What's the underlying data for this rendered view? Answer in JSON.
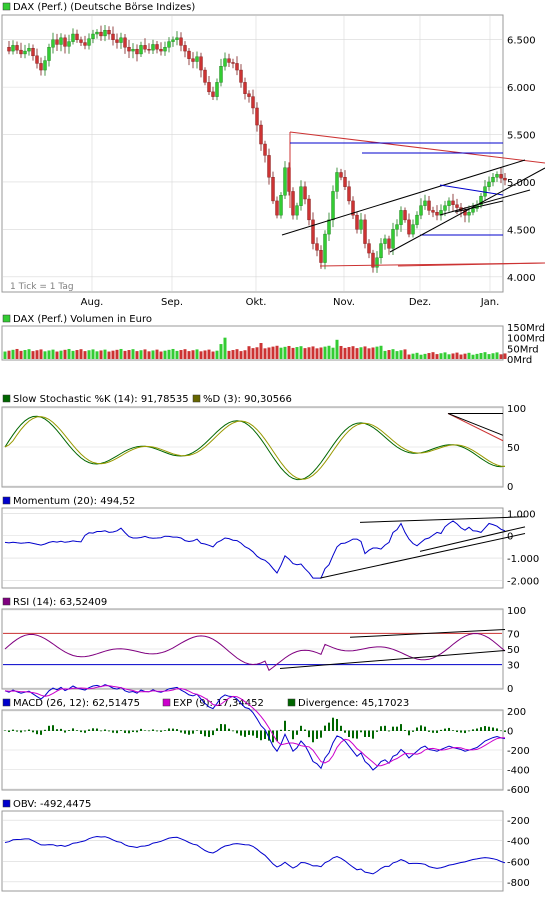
{
  "chart_data": [
    {
      "type": "line",
      "style": "candlestick",
      "legend": [
        {
          "label": "DAX (Perf.) (Deutsche Börse Indizes)",
          "color": "#33cc33"
        }
      ],
      "xticks": [
        "Aug.",
        "Sep.",
        "Okt.",
        "Nov.",
        "Dez.",
        "Jan."
      ],
      "yticks": [
        "4.000",
        "4.500",
        "5.000",
        "5.500",
        "6.000",
        "6.500"
      ],
      "ylim": [
        3850,
        6750
      ],
      "note": "1 Tick = 1 Tag",
      "x": [
        0,
        4,
        8,
        12,
        16,
        20,
        24,
        28,
        32,
        36,
        40,
        44,
        48,
        52,
        56,
        60,
        64,
        68,
        72,
        76,
        80,
        84,
        88,
        92,
        96,
        100,
        104,
        108,
        112,
        116,
        120,
        124,
        128,
        132,
        136,
        140,
        144,
        148,
        152,
        156,
        160,
        164,
        168,
        172,
        176,
        180,
        184,
        188,
        192,
        196,
        200,
        204,
        208,
        212,
        216,
        220,
        224,
        228,
        232,
        236,
        240,
        244,
        248,
        252,
        256,
        260,
        264,
        268,
        272,
        276,
        280,
        284,
        288,
        292,
        296,
        300,
        304,
        308,
        312,
        316,
        320,
        324,
        328,
        332,
        336,
        340,
        344,
        348,
        352,
        356,
        360,
        364,
        368,
        372,
        376,
        380,
        384,
        388,
        392,
        396,
        400,
        404,
        408,
        412,
        416,
        420,
        424,
        428,
        432,
        436,
        440,
        444,
        448,
        452,
        456,
        460,
        464,
        468,
        472,
        476,
        480,
        484,
        488,
        492,
        496,
        500
      ],
      "y": [
        6420,
        6380,
        6440,
        6390,
        6350,
        6380,
        6410,
        6330,
        6250,
        6180,
        6280,
        6420,
        6500,
        6450,
        6520,
        6430,
        6480,
        6560,
        6500,
        6470,
        6440,
        6510,
        6560,
        6580,
        6540,
        6600,
        6560,
        6500,
        6470,
        6520,
        6420,
        6380,
        6400,
        6350,
        6440,
        6400,
        6390,
        6450,
        6400,
        6380,
        6420,
        6480,
        6500,
        6520,
        6440,
        6380,
        6300,
        6270,
        6320,
        6180,
        6050,
        5950,
        5900,
        6050,
        6220,
        6300,
        6260,
        6250,
        6180,
        6050,
        5930,
        5900,
        5780,
        5600,
        5400,
        5280,
        5050,
        4800,
        4650,
        4860,
        5150,
        4900,
        4650,
        4750,
        4950,
        4820,
        4600,
        4350,
        4280,
        4150,
        4450,
        4600,
        4900,
        5100,
        5050,
        4950,
        4800,
        4650,
        4500,
        4600,
        4350,
        4250,
        4100,
        4200,
        4350,
        4400,
        4300,
        4500,
        4550,
        4700,
        4600,
        4450,
        4550,
        4650,
        4750,
        4800,
        4700,
        4680,
        4650,
        4700,
        4750,
        4800,
        4760,
        4730,
        4700,
        4650,
        4680,
        4720,
        4760,
        4850,
        4950,
        5000,
        5050,
        5080,
        5040,
        5020
      ]
    },
    {
      "type": "bar",
      "legend": [
        {
          "label": "DAX (Perf.) Volumen in Euro",
          "color": "#33cc33"
        }
      ],
      "yticks": [
        "150Mrd",
        "100Mrd",
        "50Mrd",
        "0Mrd"
      ],
      "ylim": [
        0,
        150
      ]
    },
    {
      "type": "line",
      "legend": [
        {
          "label": "Slow Stochastic %K (14): 91,78535",
          "color": "#006600"
        },
        {
          "label": "%D (3): 90,30566",
          "color": "#666600"
        }
      ],
      "yticks": [
        "100",
        "50",
        "0"
      ],
      "ylim": [
        0,
        100
      ]
    },
    {
      "type": "line",
      "legend": [
        {
          "label": "Momentum (20): 494,52",
          "color": "#0000cc"
        }
      ],
      "yticks": [
        "1.000",
        "0",
        "-1.000",
        "-2.000"
      ],
      "ylim": [
        -2300,
        1200
      ]
    },
    {
      "type": "line",
      "legend": [
        {
          "label": "RSI (14): 63,52409",
          "color": "#800080"
        }
      ],
      "yticks": [
        "100",
        "70",
        "50",
        "30",
        "0"
      ],
      "ylim": [
        0,
        100
      ]
    },
    {
      "type": "line",
      "legend": [
        {
          "label": "MACD (26, 12): 62,51475",
          "color": "#0000cc"
        },
        {
          "label": "EXP (9): 17,34452",
          "color": "#cc00cc"
        },
        {
          "label": "Divergence: 45,17023",
          "color": "#006600"
        }
      ],
      "yticks": [
        "200",
        "0",
        "-200",
        "-400",
        "-600"
      ],
      "ylim": [
        -600,
        200
      ]
    },
    {
      "type": "line",
      "legend": [
        {
          "label": "OBV: -492,4475",
          "color": "#0000cc"
        }
      ],
      "yticks": [
        "-200",
        "-400",
        "-600",
        "-800"
      ],
      "ylim": [
        -880,
        -120
      ]
    }
  ],
  "colors": {
    "up": "#33cc33",
    "down": "#cc3333",
    "grid": "#d8d8d8",
    "frame": "#999999",
    "trend": "#cc3333",
    "support": "#0000cc"
  }
}
